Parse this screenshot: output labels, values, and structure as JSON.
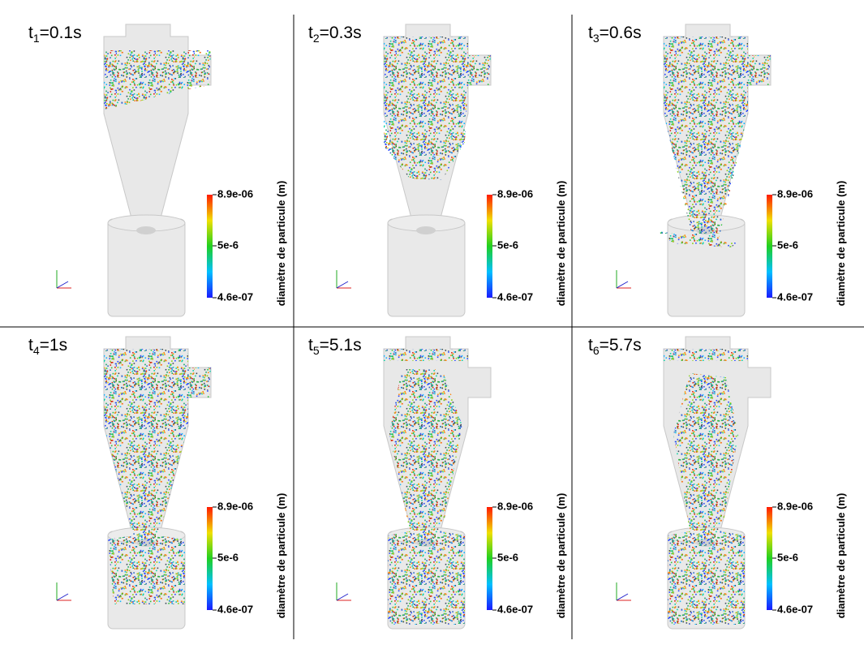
{
  "panels": [
    {
      "label": {
        "t": "t",
        "sub": "1",
        "value": "=0.1s"
      }
    },
    {
      "label": {
        "t": "t",
        "sub": "2",
        "value": "=0.3s"
      }
    },
    {
      "label": {
        "t": "t",
        "sub": "3",
        "value": "=0.6s"
      }
    },
    {
      "label": {
        "t": "t",
        "sub": "4",
        "value": "=1s"
      }
    },
    {
      "label": {
        "t": "t",
        "sub": "5",
        "value": "=5.1s"
      }
    },
    {
      "label": {
        "t": "t",
        "sub": "6",
        "value": "=5.7s"
      }
    }
  ],
  "colorbar": {
    "title": "diamètre de particule (m)",
    "max": "8.9e-06",
    "mid": "5e-6",
    "min": "4.6e-07"
  }
}
